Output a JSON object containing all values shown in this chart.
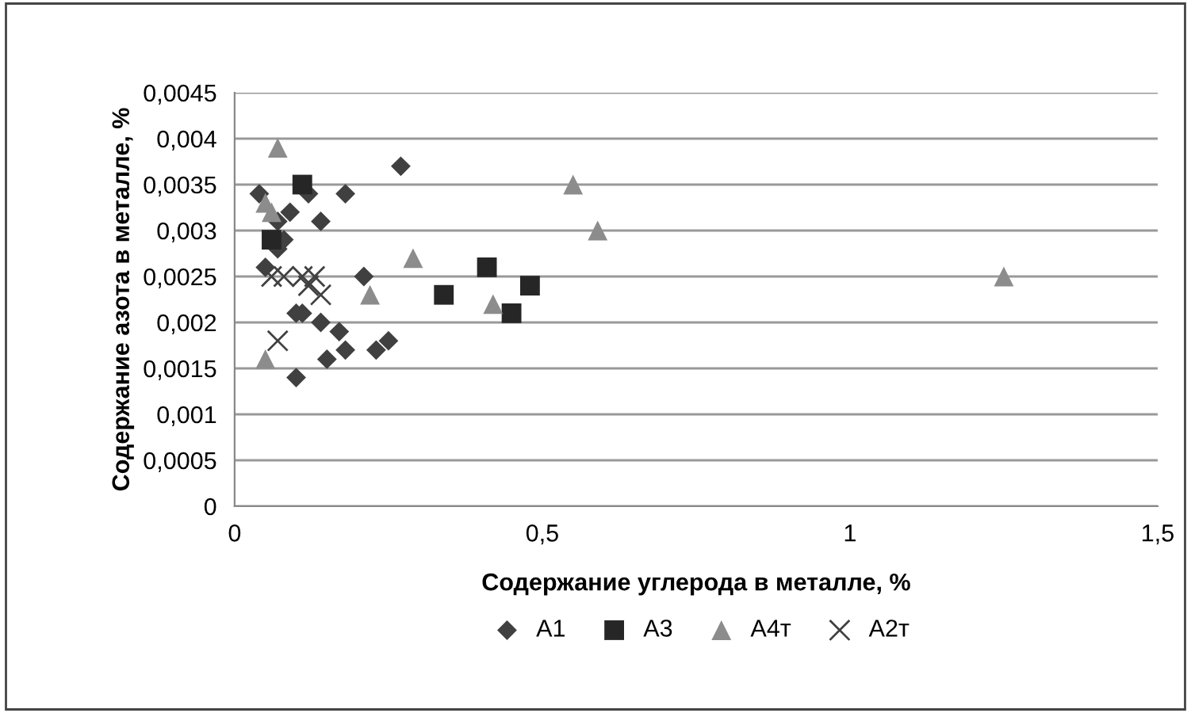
{
  "chart_data": {
    "type": "scatter",
    "xlabel": "Содержание углерода в металле, %",
    "ylabel": "Содержание азота в металле, %",
    "xlim": [
      0,
      1.5
    ],
    "xticks": [
      {
        "value": 0,
        "label": "0"
      },
      {
        "value": 0.5,
        "label": "0,5"
      },
      {
        "value": 1,
        "label": "1"
      },
      {
        "value": 1.5,
        "label": "1,5"
      }
    ],
    "ylim": [
      0,
      0.0045
    ],
    "yticks": [
      {
        "value": 0,
        "label": "0"
      },
      {
        "value": 0.0005,
        "label": "0,0005"
      },
      {
        "value": 0.001,
        "label": "0,001"
      },
      {
        "value": 0.0015,
        "label": "0,0015"
      },
      {
        "value": 0.002,
        "label": "0,002"
      },
      {
        "value": 0.0025,
        "label": "0,0025"
      },
      {
        "value": 0.003,
        "label": "0,003"
      },
      {
        "value": 0.0035,
        "label": "0,0035"
      },
      {
        "value": 0.004,
        "label": "0,004"
      },
      {
        "value": 0.0045,
        "label": "0,0045"
      }
    ],
    "grid": "y",
    "legend": "bottom",
    "series": [
      {
        "name": "А1",
        "color": "#404040",
        "marker": "diamond",
        "x": [
          0.04,
          0.07,
          0.05,
          0.09,
          0.08,
          0.07,
          0.1,
          0.11,
          0.12,
          0.14,
          0.18,
          0.27,
          0.21,
          0.14,
          0.17,
          0.15,
          0.18,
          0.23,
          0.25,
          0.1
        ],
        "values": [
          0.0034,
          0.0031,
          0.0026,
          0.0032,
          0.0029,
          0.0028,
          0.0021,
          0.0021,
          0.0034,
          0.0031,
          0.0034,
          0.0037,
          0.0025,
          0.002,
          0.0019,
          0.0016,
          0.0017,
          0.0017,
          0.0018,
          0.0014
        ]
      },
      {
        "name": "А3",
        "color": "#262626",
        "marker": "square",
        "x": [
          0.11,
          0.06,
          0.34,
          0.41,
          0.45,
          0.48
        ],
        "values": [
          0.0035,
          0.0029,
          0.0023,
          0.0026,
          0.0021,
          0.0024
        ]
      },
      {
        "name": "А4т",
        "color": "#8c8c8c",
        "marker": "triangle",
        "x": [
          0.07,
          0.05,
          0.06,
          0.29,
          0.22,
          0.42,
          0.55,
          0.59,
          1.25,
          0.05
        ],
        "values": [
          0.0039,
          0.0033,
          0.0032,
          0.0027,
          0.0023,
          0.0022,
          0.0035,
          0.003,
          0.0025,
          0.0016
        ]
      },
      {
        "name": "А2т",
        "color": "#404040",
        "marker": "cross",
        "x": [
          0.06,
          0.08,
          0.11,
          0.12,
          0.13,
          0.14,
          0.07
        ],
        "values": [
          0.0025,
          0.0025,
          0.0025,
          0.0024,
          0.0025,
          0.0023,
          0.0018
        ]
      }
    ]
  }
}
